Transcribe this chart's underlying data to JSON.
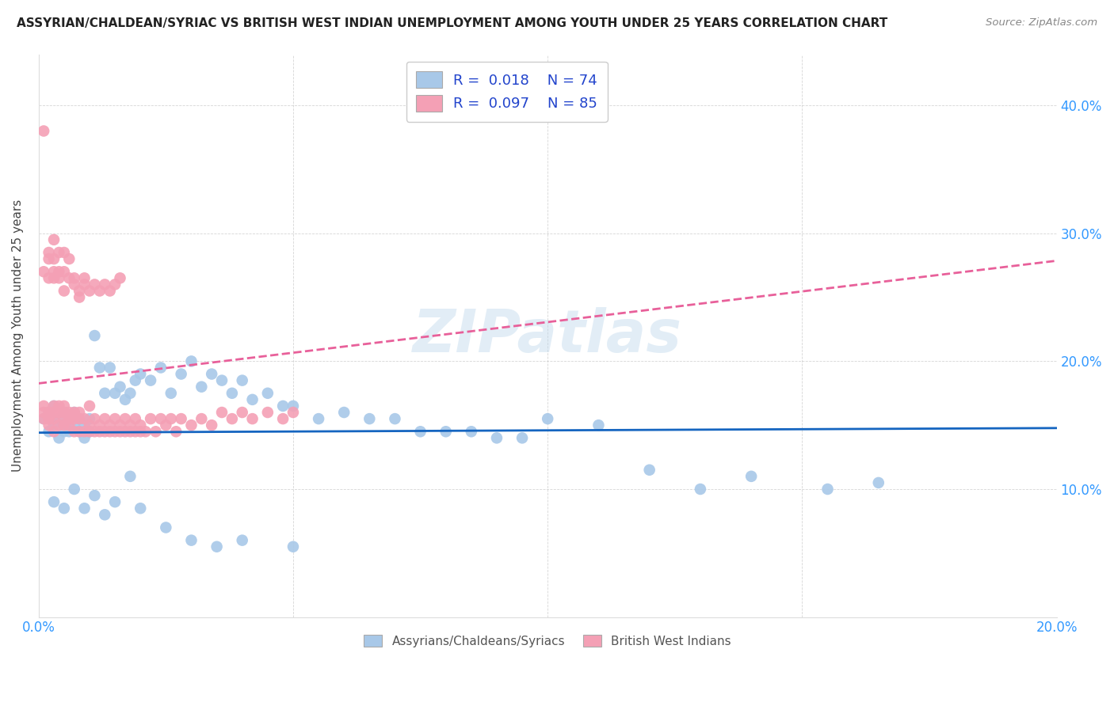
{
  "title": "ASSYRIAN/CHALDEAN/SYRIAC VS BRITISH WEST INDIAN UNEMPLOYMENT AMONG YOUTH UNDER 25 YEARS CORRELATION CHART",
  "source": "Source: ZipAtlas.com",
  "ylabel": "Unemployment Among Youth under 25 years",
  "xlim": [
    0.0,
    0.2
  ],
  "ylim": [
    0.0,
    0.44
  ],
  "blue_R": 0.018,
  "blue_N": 74,
  "pink_R": 0.097,
  "pink_N": 85,
  "blue_color": "#A8C8E8",
  "pink_color": "#F4A0B5",
  "blue_line_color": "#1565C0",
  "pink_line_color": "#E8609A",
  "watermark": "ZIPatlas",
  "legend_label_blue": "Assyrians/Chaldeans/Syriacs",
  "legend_label_pink": "British West Indians",
  "blue_scatter_x": [
    0.001,
    0.002,
    0.002,
    0.003,
    0.003,
    0.004,
    0.004,
    0.005,
    0.005,
    0.005,
    0.006,
    0.006,
    0.007,
    0.007,
    0.008,
    0.008,
    0.009,
    0.009,
    0.01,
    0.01,
    0.011,
    0.012,
    0.013,
    0.014,
    0.015,
    0.016,
    0.017,
    0.018,
    0.019,
    0.02,
    0.022,
    0.024,
    0.026,
    0.028,
    0.03,
    0.032,
    0.034,
    0.036,
    0.038,
    0.04,
    0.042,
    0.045,
    0.048,
    0.05,
    0.055,
    0.06,
    0.065,
    0.07,
    0.075,
    0.08,
    0.085,
    0.09,
    0.095,
    0.1,
    0.11,
    0.12,
    0.13,
    0.14,
    0.155,
    0.165,
    0.003,
    0.005,
    0.007,
    0.009,
    0.011,
    0.013,
    0.015,
    0.018,
    0.02,
    0.025,
    0.03,
    0.035,
    0.04,
    0.05
  ],
  "blue_scatter_y": [
    0.155,
    0.145,
    0.16,
    0.15,
    0.165,
    0.14,
    0.155,
    0.145,
    0.16,
    0.15,
    0.155,
    0.145,
    0.15,
    0.16,
    0.145,
    0.155,
    0.15,
    0.14,
    0.155,
    0.145,
    0.22,
    0.195,
    0.175,
    0.195,
    0.175,
    0.18,
    0.17,
    0.175,
    0.185,
    0.19,
    0.185,
    0.195,
    0.175,
    0.19,
    0.2,
    0.18,
    0.19,
    0.185,
    0.175,
    0.185,
    0.17,
    0.175,
    0.165,
    0.165,
    0.155,
    0.16,
    0.155,
    0.155,
    0.145,
    0.145,
    0.145,
    0.14,
    0.14,
    0.155,
    0.15,
    0.115,
    0.1,
    0.11,
    0.1,
    0.105,
    0.09,
    0.085,
    0.1,
    0.085,
    0.095,
    0.08,
    0.09,
    0.11,
    0.085,
    0.07,
    0.06,
    0.055,
    0.06,
    0.055
  ],
  "pink_scatter_x": [
    0.001,
    0.001,
    0.001,
    0.002,
    0.002,
    0.002,
    0.003,
    0.003,
    0.003,
    0.003,
    0.004,
    0.004,
    0.004,
    0.005,
    0.005,
    0.005,
    0.005,
    0.006,
    0.006,
    0.006,
    0.007,
    0.007,
    0.007,
    0.008,
    0.008,
    0.008,
    0.009,
    0.009,
    0.01,
    0.01,
    0.01,
    0.011,
    0.011,
    0.012,
    0.012,
    0.013,
    0.013,
    0.014,
    0.014,
    0.015,
    0.015,
    0.016,
    0.016,
    0.017,
    0.017,
    0.018,
    0.018,
    0.019,
    0.019,
    0.02,
    0.02,
    0.021,
    0.022,
    0.023,
    0.024,
    0.025,
    0.026,
    0.027,
    0.028,
    0.03,
    0.032,
    0.034,
    0.036,
    0.038,
    0.04,
    0.042,
    0.045,
    0.048,
    0.05,
    0.002,
    0.003,
    0.004,
    0.005,
    0.006,
    0.007,
    0.008,
    0.009,
    0.01,
    0.011,
    0.012,
    0.013,
    0.014,
    0.015,
    0.016
  ],
  "pink_scatter_y": [
    0.155,
    0.16,
    0.165,
    0.15,
    0.16,
    0.155,
    0.145,
    0.155,
    0.16,
    0.165,
    0.15,
    0.16,
    0.165,
    0.15,
    0.155,
    0.16,
    0.165,
    0.15,
    0.155,
    0.16,
    0.145,
    0.155,
    0.16,
    0.145,
    0.155,
    0.16,
    0.145,
    0.155,
    0.145,
    0.15,
    0.165,
    0.145,
    0.155,
    0.145,
    0.15,
    0.145,
    0.155,
    0.145,
    0.15,
    0.145,
    0.155,
    0.145,
    0.15,
    0.145,
    0.155,
    0.145,
    0.15,
    0.145,
    0.155,
    0.145,
    0.15,
    0.145,
    0.155,
    0.145,
    0.155,
    0.15,
    0.155,
    0.145,
    0.155,
    0.15,
    0.155,
    0.15,
    0.16,
    0.155,
    0.16,
    0.155,
    0.16,
    0.155,
    0.16,
    0.285,
    0.27,
    0.265,
    0.255,
    0.265,
    0.26,
    0.25,
    0.26,
    0.255,
    0.26,
    0.255,
    0.26,
    0.255,
    0.26,
    0.265
  ],
  "pink_high_x": [
    0.001,
    0.001,
    0.002,
    0.002,
    0.003,
    0.003,
    0.003,
    0.004,
    0.004,
    0.005,
    0.005,
    0.006,
    0.007,
    0.008,
    0.009
  ],
  "pink_high_y": [
    0.38,
    0.27,
    0.28,
    0.265,
    0.295,
    0.28,
    0.265,
    0.285,
    0.27,
    0.285,
    0.27,
    0.28,
    0.265,
    0.255,
    0.265
  ]
}
